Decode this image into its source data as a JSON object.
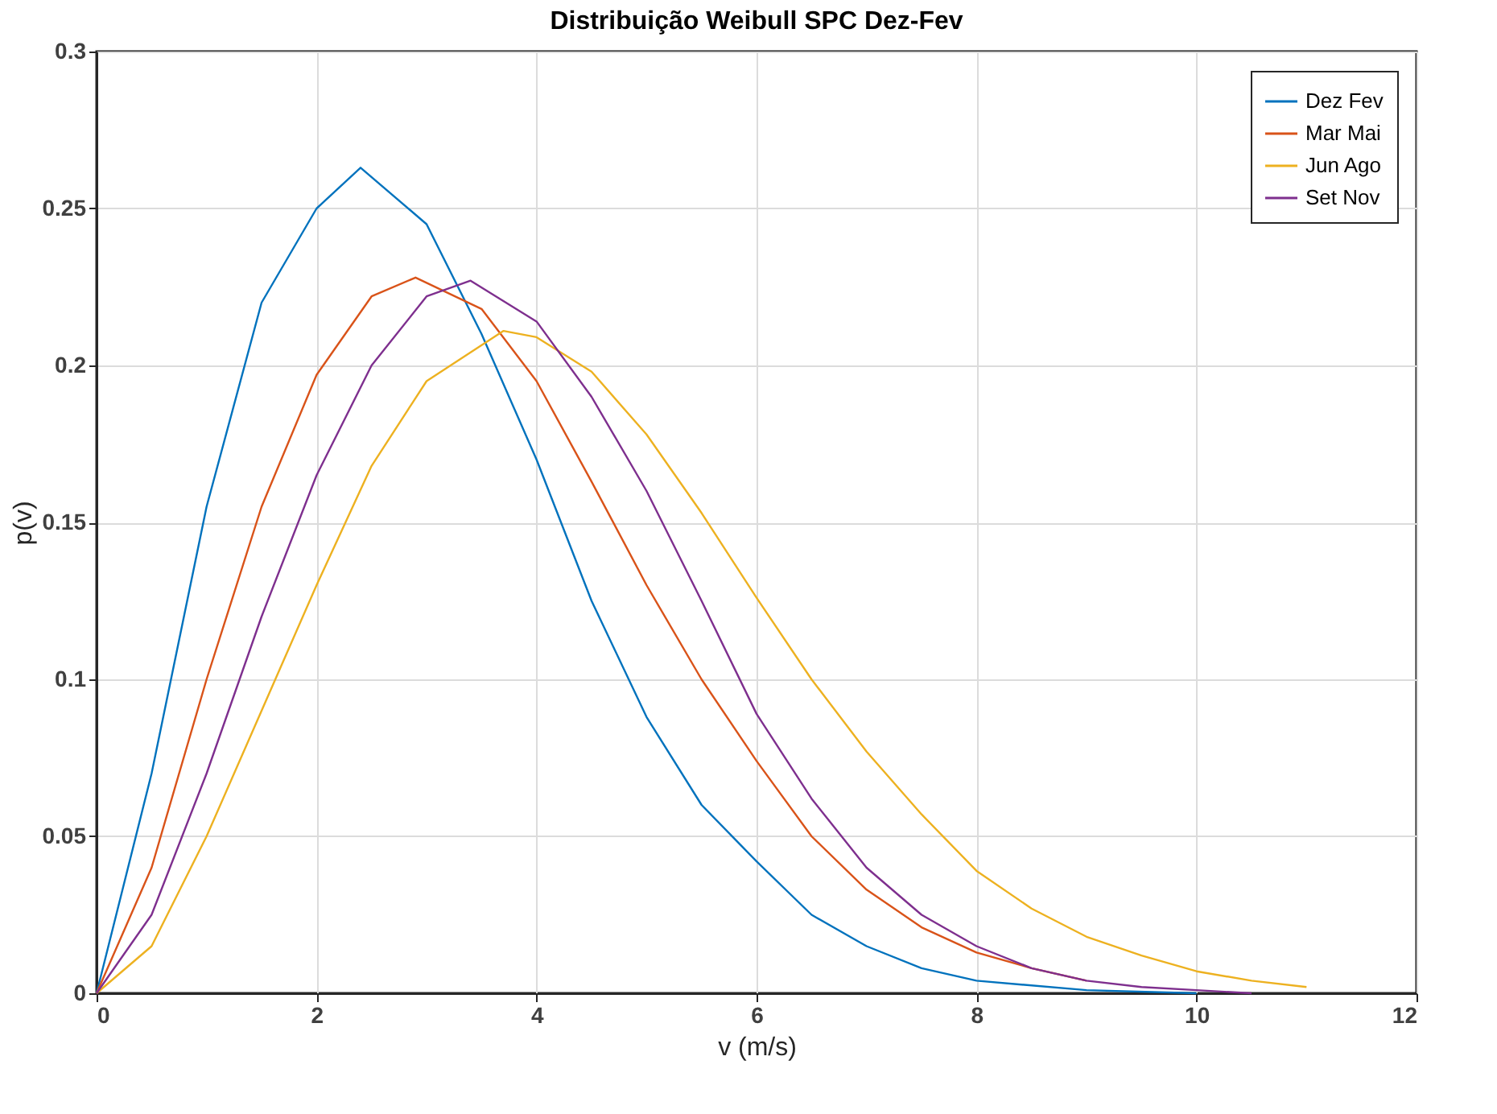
{
  "chart_data": {
    "type": "line",
    "title": "Distribuição Weibull SPC Dez-Fev",
    "xlabel": "v (m/s)",
    "ylabel": "p(v)",
    "xlim": [
      0,
      12
    ],
    "xticks": [
      0,
      2,
      4,
      6,
      8,
      10,
      12
    ],
    "ylim": [
      0,
      0.3
    ],
    "yticks": [
      0,
      0.05,
      0.1,
      0.15,
      0.2,
      0.25,
      0.3
    ],
    "grid": true,
    "legend": "top right",
    "line_style": "solid",
    "marker": "none",
    "series": [
      {
        "name": "Dez Fev",
        "color": "#0072bd",
        "x": [
          0,
          0.5,
          1,
          1.5,
          2,
          2.4,
          3,
          3.5,
          4,
          4.5,
          5,
          5.5,
          6,
          6.5,
          7,
          7.5,
          8,
          9,
          10
        ],
        "values": [
          0,
          0.07,
          0.155,
          0.22,
          0.25,
          0.263,
          0.245,
          0.21,
          0.17,
          0.125,
          0.088,
          0.06,
          0.042,
          0.025,
          0.015,
          0.008,
          0.004,
          0.001,
          0
        ]
      },
      {
        "name": "Mar Mai",
        "color": "#d95319",
        "x": [
          0,
          0.5,
          1,
          1.5,
          2,
          2.5,
          2.9,
          3.5,
          4,
          4.5,
          5,
          5.5,
          6,
          6.5,
          7,
          7.5,
          8,
          8.5,
          9
        ],
        "values": [
          0,
          0.04,
          0.1,
          0.155,
          0.197,
          0.222,
          0.228,
          0.218,
          0.195,
          0.163,
          0.13,
          0.1,
          0.074,
          0.05,
          0.033,
          0.021,
          0.013,
          0.008,
          0.004
        ]
      },
      {
        "name": "Jun Ago",
        "color": "#edb120",
        "x": [
          0,
          0.5,
          1,
          1.5,
          2,
          2.5,
          3,
          3.7,
          4,
          4.5,
          5,
          5.5,
          6,
          6.5,
          7,
          7.5,
          8,
          8.5,
          9,
          9.5,
          10,
          10.5,
          11
        ],
        "values": [
          0,
          0.015,
          0.05,
          0.09,
          0.13,
          0.168,
          0.195,
          0.211,
          0.209,
          0.198,
          0.178,
          0.153,
          0.126,
          0.1,
          0.077,
          0.057,
          0.039,
          0.027,
          0.018,
          0.012,
          0.007,
          0.004,
          0.002
        ]
      },
      {
        "name": "Set Nov",
        "color": "#7e2f8e",
        "x": [
          0,
          0.5,
          1,
          1.5,
          2,
          2.5,
          3,
          3.4,
          4,
          4.5,
          5,
          5.5,
          6,
          6.5,
          7,
          7.5,
          8,
          8.5,
          9,
          9.5,
          10,
          10.5
        ],
        "values": [
          0,
          0.025,
          0.07,
          0.12,
          0.165,
          0.2,
          0.222,
          0.227,
          0.214,
          0.19,
          0.16,
          0.125,
          0.089,
          0.062,
          0.04,
          0.025,
          0.015,
          0.008,
          0.004,
          0.002,
          0.001,
          0
        ]
      }
    ]
  }
}
